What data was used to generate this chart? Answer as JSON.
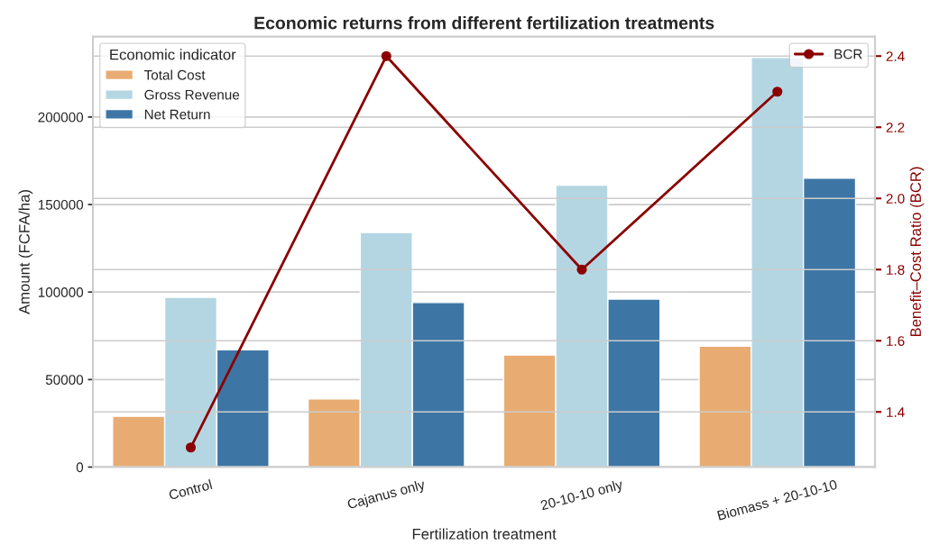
{
  "chart_data": {
    "type": "bar",
    "title": "Economic returns from different fertilization treatments",
    "xlabel": "Fertilization treatment",
    "ylabel": "Amount (FCFA/ha)",
    "y2label": "Benefit–Cost Ratio (BCR)",
    "legend_title": "Economic indicator",
    "categories": [
      "Control",
      "Cajanus only",
      "20-10-10 only",
      "Biomass + 20-10-10"
    ],
    "series": [
      {
        "name": "Total Cost",
        "color": "#e8ac72",
        "values": [
          29000,
          39000,
          64000,
          69000
        ]
      },
      {
        "name": "Gross Revenue",
        "color": "#b4d6e2",
        "values": [
          97000,
          134000,
          161000,
          234000
        ]
      },
      {
        "name": "Net Return",
        "color": "#3d76a5",
        "values": [
          67000,
          94000,
          96000,
          165000
        ]
      },
      {
        "name": "BCR",
        "type": "line",
        "axis": "y2",
        "color": "#8b0000",
        "marker": "circle",
        "values": [
          1.3,
          2.4,
          1.8,
          2.3
        ]
      }
    ],
    "ylim": [
      0,
      246000
    ],
    "yticks": [
      0,
      50000,
      100000,
      150000,
      200000
    ],
    "y2lim": [
      1.245,
      2.455
    ],
    "y2ticks": [
      1.4,
      1.6,
      1.8,
      {
        "value": 2.0,
        "label": "2.0"
      },
      2.2,
      2.4
    ],
    "grid": "y",
    "legend": "top left"
  }
}
